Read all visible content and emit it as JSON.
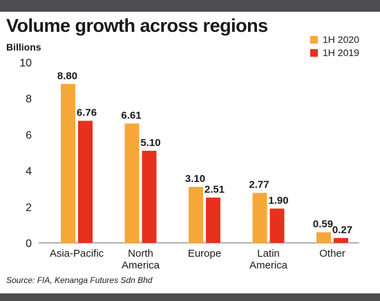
{
  "colors": {
    "primary": "#f7a738",
    "secondary": "#e8301f",
    "frame": "#4d4d4f"
  },
  "chart_data": {
    "type": "bar",
    "title": "Volume growth across regions",
    "ylabel": "Billions",
    "source": "Source: FIA, Kenanga Futures Sdn Bhd",
    "categories": [
      [
        "Asia-Pacific"
      ],
      [
        "North",
        "America"
      ],
      [
        "Europe"
      ],
      [
        "Latin",
        "America"
      ],
      [
        "Other"
      ]
    ],
    "series": [
      {
        "name": "1H 2020",
        "values": [
          8.8,
          6.61,
          3.1,
          2.77,
          0.59
        ],
        "labels": [
          "8.80",
          "6.61",
          "3.10",
          "2.77",
          "0.59"
        ]
      },
      {
        "name": "1H 2019",
        "values": [
          6.76,
          5.1,
          2.51,
          1.9,
          0.27
        ],
        "labels": [
          "6.76",
          "5.10",
          "2.51",
          "1.90",
          "0.27"
        ]
      }
    ],
    "ylim": [
      0,
      10
    ],
    "yticks": [
      "0",
      "2",
      "4",
      "6",
      "8",
      "10"
    ],
    "grid": false,
    "legend": "top-right"
  }
}
